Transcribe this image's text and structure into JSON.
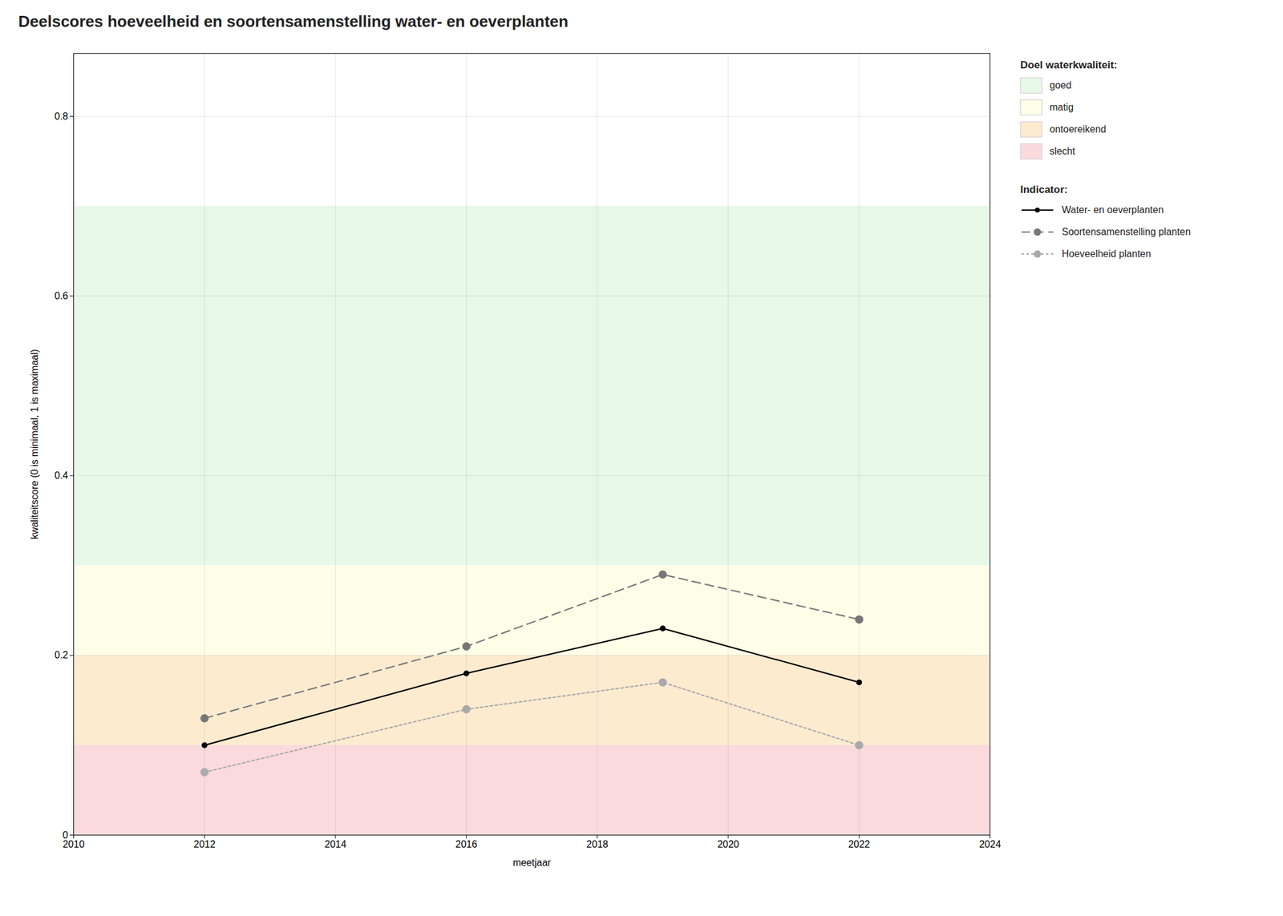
{
  "chart_data": {
    "type": "line",
    "title": "Deelscores hoeveelheid en soortensamenstelling water- en oeverplanten",
    "xlabel": "meetjaar",
    "ylabel": "kwaliteitscore (0 is minimaal, 1 is maximaal)",
    "xlim": [
      2010,
      2024
    ],
    "ylim": [
      0.0,
      0.87
    ],
    "xticks": [
      2010,
      2012,
      2014,
      2016,
      2018,
      2020,
      2022,
      2024
    ],
    "yticks": [
      0.0,
      0.2,
      0.4,
      0.6,
      0.8
    ],
    "grid": true,
    "legend": "right",
    "x": [
      2012,
      2016,
      2019,
      2022
    ],
    "series": [
      {
        "name": "Water- en oeverplanten",
        "color": "#000000",
        "line_style": "solid",
        "marker": "circle",
        "values": [
          0.1,
          0.18,
          0.23,
          0.17
        ]
      },
      {
        "name": "Soortensamenstelling planten",
        "color": "#777777",
        "line_style": "dashed",
        "marker": "circle",
        "values": [
          0.13,
          0.21,
          0.29,
          0.24
        ]
      },
      {
        "name": "Hoeveelheid planten",
        "color": "#AAAAAA",
        "line_style": "dotted",
        "marker": "circle",
        "values": [
          0.07,
          0.14,
          0.17,
          0.1
        ]
      }
    ],
    "bands_title": "Doel waterkwaliteit:",
    "bands": [
      {
        "name": "slecht",
        "ymin": 0.0,
        "ymax": 0.1,
        "color": "#FADADD"
      },
      {
        "name": "ontoereikend",
        "ymin": 0.1,
        "ymax": 0.2,
        "color": "#FDEBD0"
      },
      {
        "name": "matig",
        "ymin": 0.2,
        "ymax": 0.3,
        "color": "#FEFDE7"
      },
      {
        "name": "goed",
        "ymin": 0.3,
        "ymax": 0.7,
        "color": "#E8F8E8"
      }
    ],
    "legend_title": "Indicator:"
  }
}
